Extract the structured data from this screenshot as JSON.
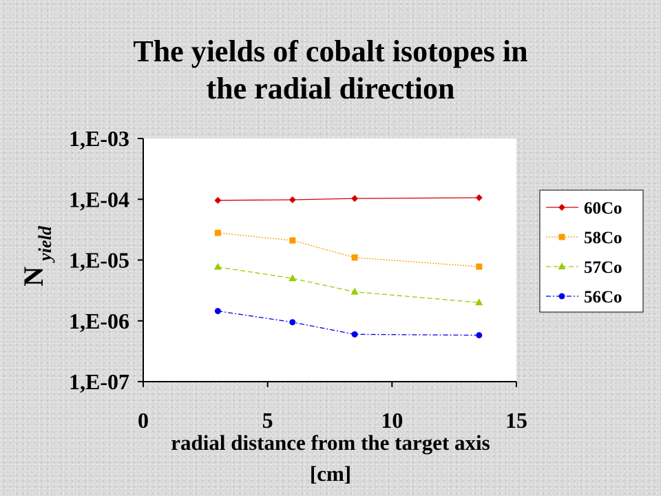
{
  "slide": {
    "title_line1": "The yields of cobalt isotopes in",
    "title_line2": "the radial direction"
  },
  "chart_data": {
    "type": "line",
    "title": "The yields of cobalt isotopes in the radial direction",
    "xlabel_line1": "radial distance from the target axis",
    "xlabel_line2": "[cm]",
    "ylabel_main": "N",
    "ylabel_sub": "yield",
    "xlim": [
      0,
      15
    ],
    "ylim": [
      1e-07,
      0.001
    ],
    "yscale": "log",
    "x_ticks": [
      {
        "value": 0,
        "label": "0"
      },
      {
        "value": 5,
        "label": "5"
      },
      {
        "value": 10,
        "label": "10"
      },
      {
        "value": 15,
        "label": "15"
      }
    ],
    "y_ticks": [
      {
        "value": 0.001,
        "label": "1,E-03"
      },
      {
        "value": 0.0001,
        "label": "1,E-04"
      },
      {
        "value": 1e-05,
        "label": "1,E-05"
      },
      {
        "value": 1e-06,
        "label": "1,E-06"
      },
      {
        "value": 1e-07,
        "label": "1,E-07"
      }
    ],
    "grid": false,
    "legend_position": "right",
    "x": [
      3,
      6,
      8.5,
      13.5
    ],
    "series": [
      {
        "name": "60Co",
        "values": [
          9.6e-05,
          9.8e-05,
          0.000103,
          0.000106
        ],
        "color": "#d40000",
        "marker": "diamond",
        "dash": ""
      },
      {
        "name": "58Co",
        "values": [
          2.8e-05,
          2.1e-05,
          1.1e-05,
          7.8e-06
        ],
        "color": "#ff9900",
        "marker": "square",
        "dash": "2,2"
      },
      {
        "name": "57Co",
        "values": [
          7.7e-06,
          5e-06,
          3e-06,
          2e-06
        ],
        "color": "#99cc00",
        "marker": "triangle",
        "dash": "7,4"
      },
      {
        "name": "56Co",
        "values": [
          1.45e-06,
          9.5e-07,
          6e-07,
          5.8e-07
        ],
        "color": "#0000ee",
        "marker": "circle",
        "dash": "7,3,2,3"
      }
    ]
  }
}
